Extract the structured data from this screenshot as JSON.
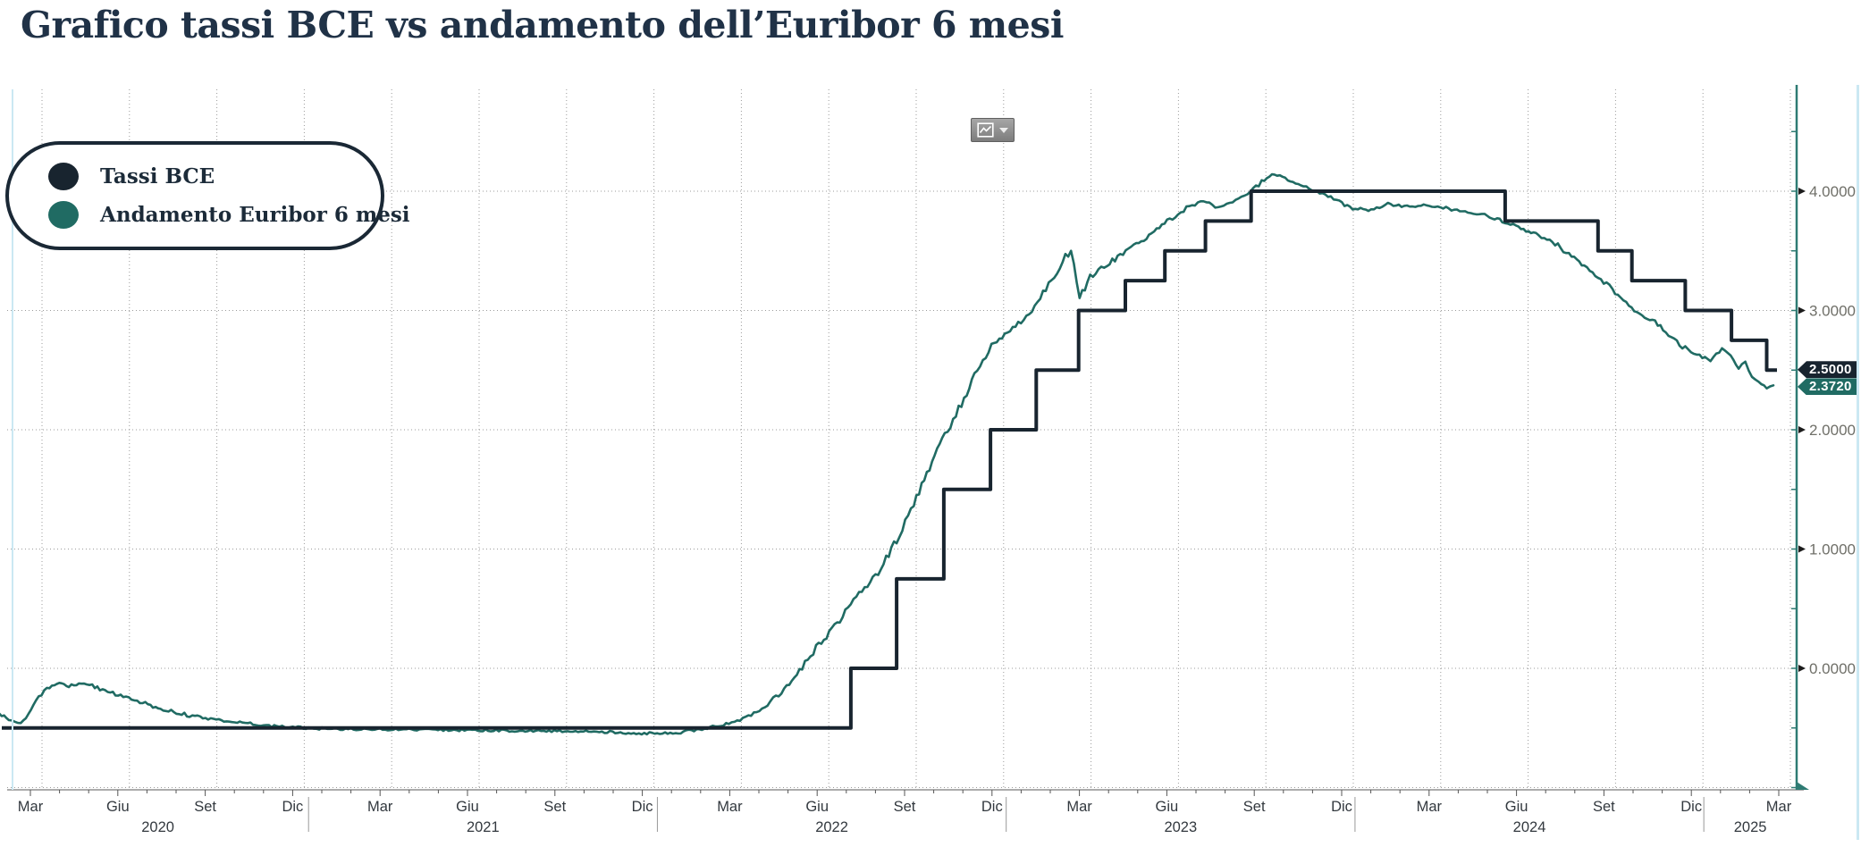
{
  "title": "Grafico tassi BCE vs andamento dell’Euribor 6 mesi",
  "colors": {
    "navy": "#18242f",
    "teal": "#206b63",
    "axis_teal": "#2e7b73",
    "grid": "#9b9b9b",
    "y_label_text": "#6f6f68",
    "x_label_text": "#33393f",
    "title_text": "#203247",
    "tag_text": "#ffffff",
    "background": "#ffffff",
    "pane_edge_blue": "#cbe8f3"
  },
  "legend": {
    "items": [
      {
        "label": "Tassi BCE",
        "color": "#18242f"
      },
      {
        "label": "Andamento Euribor 6 mesi",
        "color": "#206b63"
      }
    ]
  },
  "toolbar": {
    "chart_style_button": {
      "icon": "line-chart-icon",
      "caret": "caret-down-icon"
    }
  },
  "chart_data": {
    "type": "line",
    "title": "Grafico tassi BCE vs andamento dell’Euribor 6 mesi",
    "x_axis": {
      "start": "2020-02",
      "end": "2025-03",
      "quarter_labels": [
        "Mar",
        "Giu",
        "Set",
        "Dic",
        "Mar",
        "Giu",
        "Set",
        "Dic",
        "Mar",
        "Giu",
        "Set",
        "Dic",
        "Mar",
        "Giu",
        "Set",
        "Dic",
        "Mar",
        "Giu",
        "Set",
        "Dic",
        "Mar"
      ],
      "year_labels": [
        "2020",
        "2021",
        "2022",
        "2023",
        "2024",
        "2025"
      ]
    },
    "y_axis": {
      "values": [
        4,
        3,
        2,
        1,
        0
      ],
      "labels": [
        "4.0000",
        "3.0000",
        "2.0000",
        "1.0000",
        "0.0000"
      ],
      "minor_step": 0.5,
      "ylim": [
        -1.0,
        4.85
      ],
      "grid": true,
      "side": "right"
    },
    "legend_position": "top-left",
    "series": [
      {
        "name": "Tassi BCE",
        "color": "#18242f",
        "style": "step",
        "last_value": 2.5,
        "last_label": "2.5000",
        "points": [
          [
            "2020-02-12",
            -0.5
          ],
          [
            "2022-07-21",
            0.0
          ],
          [
            "2022-09-08",
            0.75
          ],
          [
            "2022-10-27",
            1.5
          ],
          [
            "2022-12-15",
            2.0
          ],
          [
            "2023-02-02",
            2.5
          ],
          [
            "2023-03-16",
            3.0
          ],
          [
            "2023-05-04",
            3.25
          ],
          [
            "2023-06-15",
            3.5
          ],
          [
            "2023-07-27",
            3.75
          ],
          [
            "2023-09-14",
            4.0
          ],
          [
            "2024-06-06",
            3.75
          ],
          [
            "2024-09-12",
            3.5
          ],
          [
            "2024-10-17",
            3.25
          ],
          [
            "2024-12-12",
            3.0
          ],
          [
            "2025-01-30",
            2.75
          ],
          [
            "2025-03-06",
            2.5
          ]
        ]
      },
      {
        "name": "Andamento Euribor 6 mesi",
        "color": "#206b63",
        "style": "line",
        "last_value": 2.372,
        "last_label": "2.3720",
        "points": [
          [
            "2020-02-12",
            -0.38
          ],
          [
            "2020-02-22",
            -0.43
          ],
          [
            "2020-03-04",
            -0.46
          ],
          [
            "2020-03-12",
            -0.38
          ],
          [
            "2020-03-20",
            -0.26
          ],
          [
            "2020-04-01",
            -0.18
          ],
          [
            "2020-04-14",
            -0.12
          ],
          [
            "2020-04-24",
            -0.155
          ],
          [
            "2020-05-04",
            -0.12
          ],
          [
            "2020-05-18",
            -0.145
          ],
          [
            "2020-06-01",
            -0.19
          ],
          [
            "2020-06-20",
            -0.235
          ],
          [
            "2020-07-10",
            -0.29
          ],
          [
            "2020-08-01",
            -0.345
          ],
          [
            "2020-09-01",
            -0.4
          ],
          [
            "2020-10-01",
            -0.435
          ],
          [
            "2020-11-01",
            -0.465
          ],
          [
            "2020-12-01",
            -0.49
          ],
          [
            "2021-01-15",
            -0.505
          ],
          [
            "2021-03-01",
            -0.51
          ],
          [
            "2021-05-01",
            -0.515
          ],
          [
            "2021-07-01",
            -0.52
          ],
          [
            "2021-09-01",
            -0.525
          ],
          [
            "2021-11-01",
            -0.53
          ],
          [
            "2021-12-15",
            -0.545
          ],
          [
            "2022-01-20",
            -0.54
          ],
          [
            "2022-02-20",
            -0.505
          ],
          [
            "2022-03-15",
            -0.46
          ],
          [
            "2022-04-05",
            -0.4
          ],
          [
            "2022-04-25",
            -0.31
          ],
          [
            "2022-05-12",
            -0.17
          ],
          [
            "2022-05-28",
            -0.02
          ],
          [
            "2022-06-15",
            0.17
          ],
          [
            "2022-07-01",
            0.32
          ],
          [
            "2022-07-18",
            0.5
          ],
          [
            "2022-08-05",
            0.68
          ],
          [
            "2022-08-22",
            0.83
          ],
          [
            "2022-09-08",
            1.08
          ],
          [
            "2022-09-26",
            1.38
          ],
          [
            "2022-10-12",
            1.68
          ],
          [
            "2022-10-28",
            1.95
          ],
          [
            "2022-11-15",
            2.22
          ],
          [
            "2022-12-01",
            2.5
          ],
          [
            "2022-12-16",
            2.72
          ],
          [
            "2023-01-05",
            2.82
          ],
          [
            "2023-01-25",
            2.98
          ],
          [
            "2023-02-15",
            3.22
          ],
          [
            "2023-03-08",
            3.52
          ],
          [
            "2023-03-17",
            3.1
          ],
          [
            "2023-03-28",
            3.28
          ],
          [
            "2023-04-18",
            3.4
          ],
          [
            "2023-05-10",
            3.52
          ],
          [
            "2023-06-01",
            3.65
          ],
          [
            "2023-06-20",
            3.76
          ],
          [
            "2023-07-10",
            3.87
          ],
          [
            "2023-07-25",
            3.92
          ],
          [
            "2023-08-10",
            3.86
          ],
          [
            "2023-08-25",
            3.9
          ],
          [
            "2023-09-10",
            3.98
          ],
          [
            "2023-09-25",
            4.08
          ],
          [
            "2023-10-08",
            4.14
          ],
          [
            "2023-10-22",
            4.09
          ],
          [
            "2023-11-08",
            4.04
          ],
          [
            "2023-11-25",
            3.99
          ],
          [
            "2023-12-12",
            3.92
          ],
          [
            "2023-12-29",
            3.86
          ],
          [
            "2024-01-15",
            3.84
          ],
          [
            "2024-02-05",
            3.89
          ],
          [
            "2024-02-25",
            3.87
          ],
          [
            "2024-03-15",
            3.885
          ],
          [
            "2024-04-05",
            3.86
          ],
          [
            "2024-04-25",
            3.82
          ],
          [
            "2024-05-15",
            3.8
          ],
          [
            "2024-06-03",
            3.75
          ],
          [
            "2024-06-20",
            3.7
          ],
          [
            "2024-07-08",
            3.64
          ],
          [
            "2024-07-25",
            3.58
          ],
          [
            "2024-08-12",
            3.47
          ],
          [
            "2024-08-28",
            3.38
          ],
          [
            "2024-09-12",
            3.28
          ],
          [
            "2024-09-27",
            3.18
          ],
          [
            "2024-10-11",
            3.06
          ],
          [
            "2024-10-25",
            2.97
          ],
          [
            "2024-11-08",
            2.92
          ],
          [
            "2024-11-22",
            2.83
          ],
          [
            "2024-12-09",
            2.7
          ],
          [
            "2024-12-27",
            2.62
          ],
          [
            "2025-01-08",
            2.58
          ],
          [
            "2025-01-20",
            2.69
          ],
          [
            "2025-01-29",
            2.62
          ],
          [
            "2025-02-07",
            2.52
          ],
          [
            "2025-02-14",
            2.57
          ],
          [
            "2025-02-21",
            2.46
          ],
          [
            "2025-02-28",
            2.4
          ],
          [
            "2025-03-06",
            2.34
          ],
          [
            "2025-03-13",
            2.372
          ]
        ]
      }
    ],
    "price_tags": [
      {
        "label": "2.5000",
        "series": "Tassi BCE"
      },
      {
        "label": "2.3720",
        "series": "Andamento Euribor 6 mesi"
      }
    ]
  }
}
